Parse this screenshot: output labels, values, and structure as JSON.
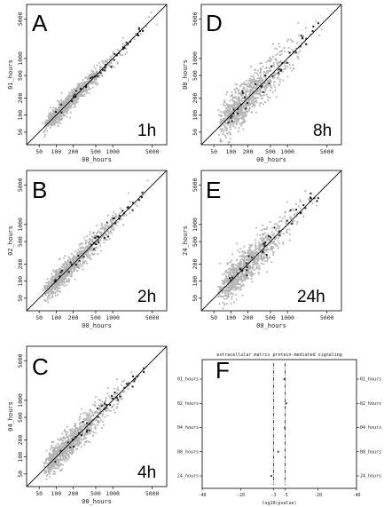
{
  "chart_data": [
    {
      "type": "scatter",
      "panel": "A",
      "time_label": "1h",
      "xlabel": "00_hours",
      "ylabel": "01_hours",
      "scale": "log",
      "xlim": [
        30,
        9000
      ],
      "ylim": [
        30,
        9000
      ],
      "x_ticks": [
        "50",
        "100",
        "200",
        "500",
        "1000",
        "5000"
      ],
      "y_ticks": [
        "50",
        "100",
        "200",
        "500",
        "1000",
        "5000"
      ],
      "identity_line": true,
      "spread": 0.35
    },
    {
      "type": "scatter",
      "panel": "B",
      "time_label": "2h",
      "xlabel": "00_hours",
      "ylabel": "02_hours",
      "scale": "log",
      "xlim": [
        30,
        9000
      ],
      "ylim": [
        30,
        9000
      ],
      "x_ticks": [
        "50",
        "100",
        "200",
        "500",
        "1000",
        "5000"
      ],
      "y_ticks": [
        "50",
        "100",
        "200",
        "500",
        "1000",
        "5000"
      ],
      "identity_line": true,
      "spread": 0.45
    },
    {
      "type": "scatter",
      "panel": "C",
      "time_label": "4h",
      "xlabel": "00_hours",
      "ylabel": "04_hours",
      "scale": "log",
      "xlim": [
        30,
        9000
      ],
      "ylim": [
        30,
        9000
      ],
      "x_ticks": [
        "50",
        "100",
        "200",
        "500",
        "1000",
        "5000"
      ],
      "y_ticks": [
        "50",
        "100",
        "200",
        "500",
        "1000",
        "5000"
      ],
      "identity_line": true,
      "spread": 0.55
    },
    {
      "type": "scatter",
      "panel": "D",
      "time_label": "8h",
      "xlabel": "00_hours",
      "ylabel": "08_hours",
      "scale": "log",
      "xlim": [
        30,
        9000
      ],
      "ylim": [
        30,
        9000
      ],
      "x_ticks": [
        "50",
        "100",
        "200",
        "500",
        "1000",
        "5000"
      ],
      "y_ticks": [
        "50",
        "100",
        "200",
        "500",
        "1000",
        "5000"
      ],
      "identity_line": true,
      "spread": 0.8
    },
    {
      "type": "scatter",
      "panel": "E",
      "time_label": "24h",
      "xlabel": "00_hours",
      "ylabel": "24_hours",
      "scale": "log",
      "xlim": [
        30,
        9000
      ],
      "ylim": [
        30,
        9000
      ],
      "x_ticks": [
        "50",
        "100",
        "200",
        "500",
        "1000",
        "5000"
      ],
      "y_ticks": [
        "50",
        "100",
        "200",
        "500",
        "1000",
        "5000"
      ],
      "identity_line": true,
      "spread": 0.7
    },
    {
      "type": "scatter",
      "panel": "F",
      "title": "extracellular matrix protein-mediated signaling",
      "xlabel": "log10(pvalue)",
      "xlim": [
        -40,
        40
      ],
      "x_ticks": [
        "-40",
        "-20",
        "-3",
        "-3",
        "-20",
        "-40"
      ],
      "x_tick_values": [
        -40,
        -20,
        -3,
        3,
        20,
        40
      ],
      "categories": [
        "01_hours",
        "02_hours",
        "04_hours",
        "08_hours",
        "24_hours"
      ],
      "threshold_lines": [
        -3,
        3
      ],
      "values": [
        2.6,
        3.6,
        2.8,
        -0.6,
        -4.2
      ]
    }
  ],
  "colors": {
    "background_point": "#b4b4b4",
    "highlight_point": "#222222",
    "identity_line": "#000000"
  }
}
